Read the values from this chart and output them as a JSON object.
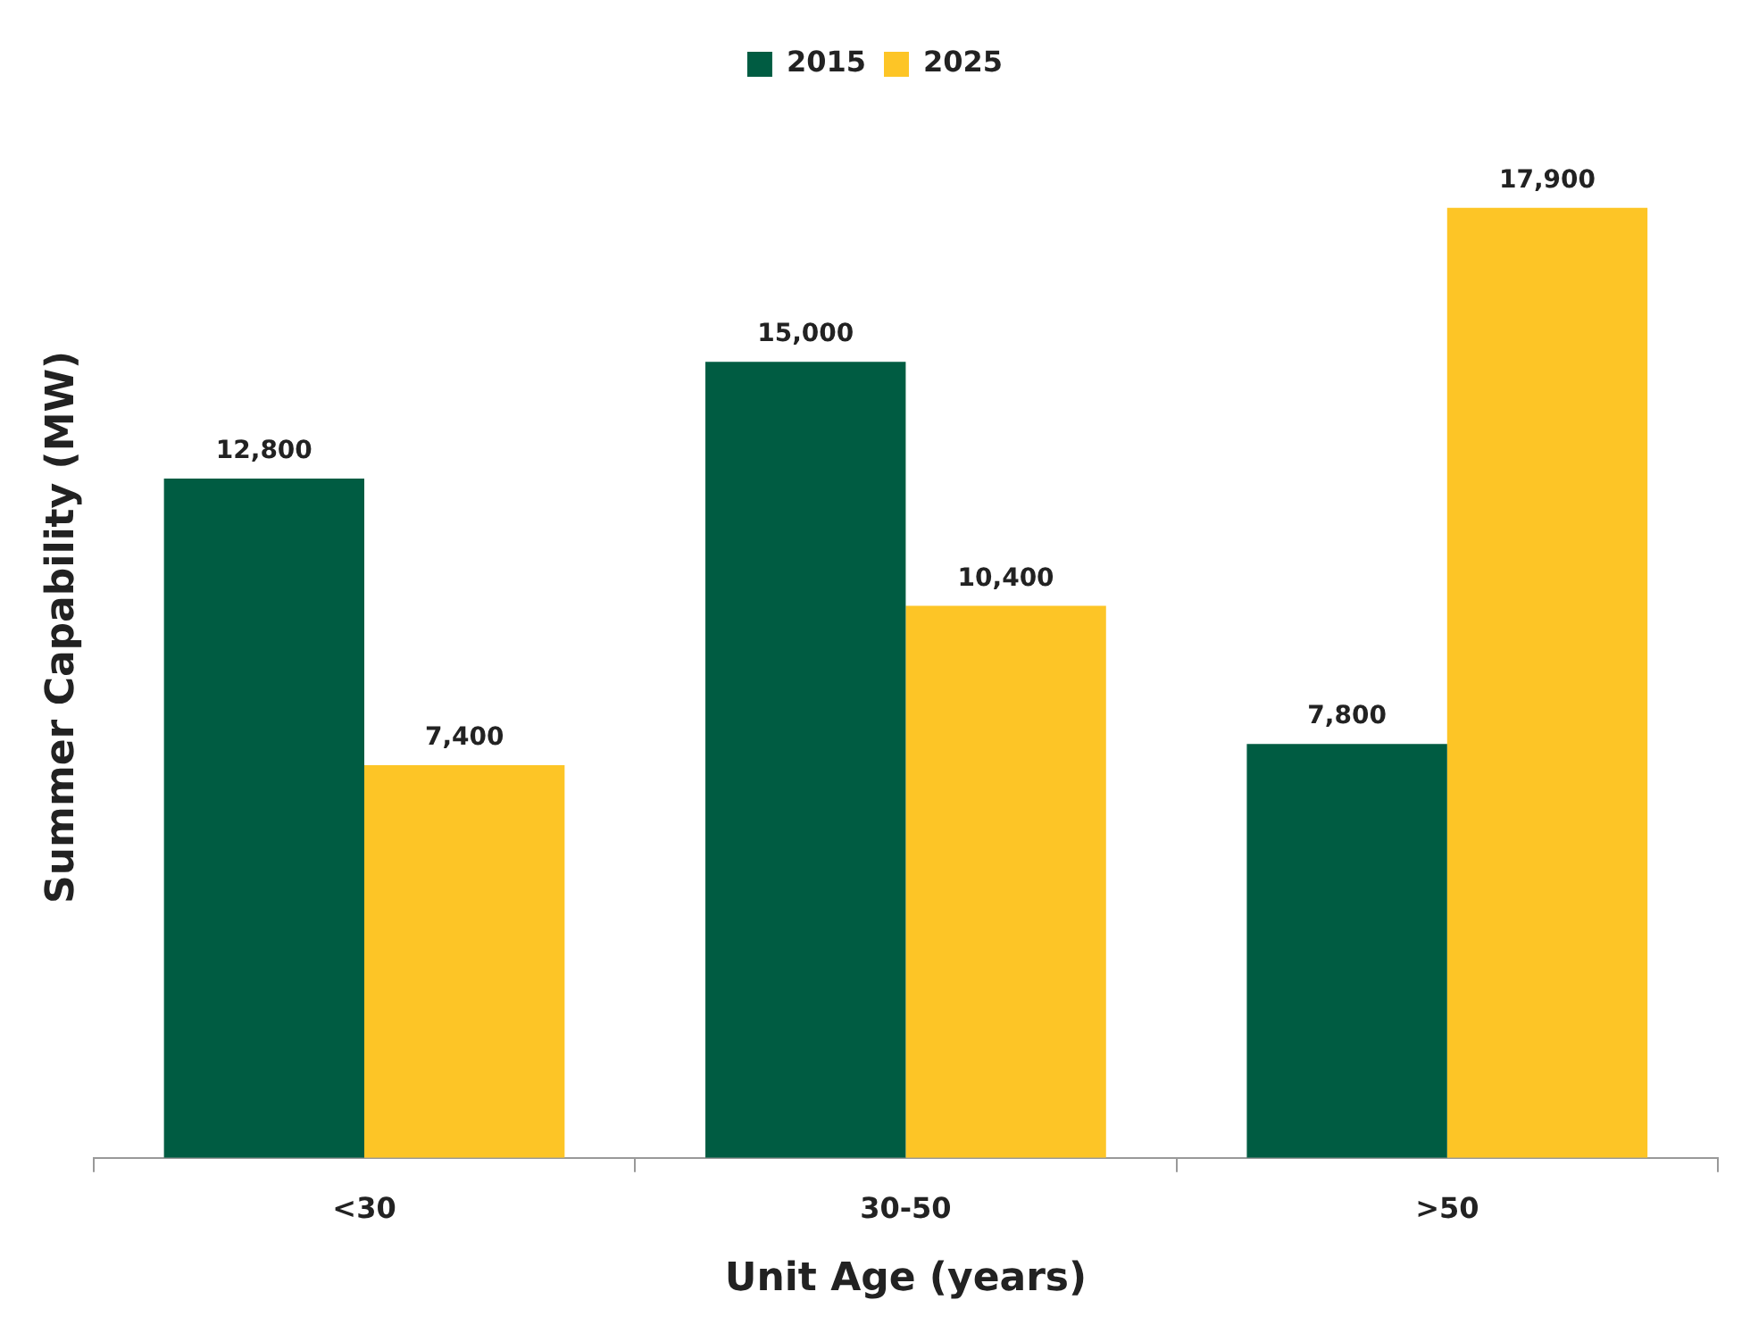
{
  "chart_data": {
    "type": "bar",
    "xlabel": "Unit Age (years)",
    "ylabel": "Summer Capability (MW)",
    "categories": [
      "<30",
      "30-50",
      ">50"
    ],
    "series": [
      {
        "name": "2015",
        "color": "#005c42",
        "values": [
          12800,
          15000,
          7800
        ],
        "value_labels": [
          "12,800",
          "15,000",
          "7,800"
        ]
      },
      {
        "name": "2025",
        "color": "#fdc526",
        "values": [
          7400,
          10400,
          17900
        ],
        "value_labels": [
          "7,400",
          "10,400",
          "17,900"
        ]
      }
    ],
    "legend": "top",
    "grid": false
  }
}
